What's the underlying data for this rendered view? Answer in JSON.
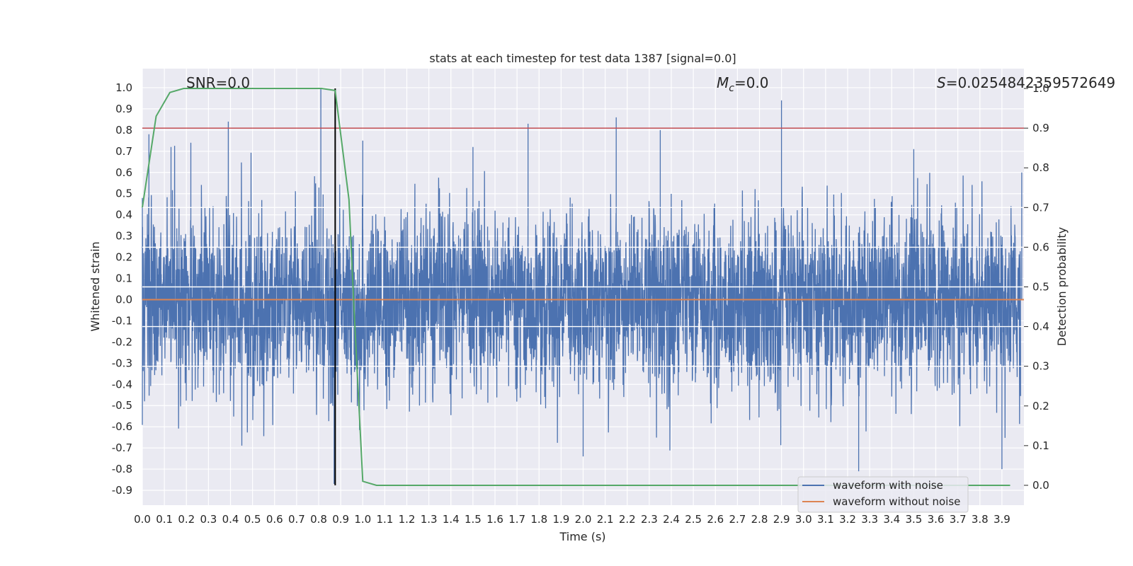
{
  "chart_data": {
    "type": "line",
    "title": "stats at each timestep for test data 1387 [signal=0.0]",
    "xlabel": "Time (s)",
    "ylabel": "Whitened strain",
    "y2label": "Detection probability",
    "xlim": [
      0.0,
      4.0
    ],
    "ylim": [
      -0.97,
      1.09
    ],
    "y2lim": [
      -0.05,
      1.05
    ],
    "x_ticks": [
      "0.0",
      "0.1",
      "0.2",
      "0.3",
      "0.4",
      "0.5",
      "0.6",
      "0.7",
      "0.8",
      "0.9",
      "1.0",
      "1.1",
      "1.2",
      "1.3",
      "1.4",
      "1.5",
      "1.6",
      "1.7",
      "1.8",
      "1.9",
      "2.0",
      "2.1",
      "2.2",
      "2.3",
      "2.4",
      "2.5",
      "2.6",
      "2.7",
      "2.8",
      "2.9",
      "3.0",
      "3.1",
      "3.2",
      "3.3",
      "3.4",
      "3.5",
      "3.6",
      "3.7",
      "3.8",
      "3.9"
    ],
    "y_ticks": [
      "1.0",
      "0.9",
      "0.8",
      "0.7",
      "0.6",
      "0.5",
      "0.4",
      "0.3",
      "0.2",
      "0.1",
      "0.0",
      "-0.1",
      "-0.2",
      "-0.3",
      "-0.4",
      "-0.5",
      "-0.6",
      "-0.7",
      "-0.8",
      "-0.9"
    ],
    "y2_ticks": [
      "1.0",
      "0.9",
      "0.8",
      "0.7",
      "0.6",
      "0.5",
      "0.4",
      "0.3",
      "0.2",
      "0.1",
      "0.0"
    ],
    "grid": true,
    "legend_position": "lower-right",
    "series": [
      {
        "name": "waveform with noise",
        "axis": "left",
        "color": "#4c72b0",
        "description_points": {
          "x": [
            0.0,
            0.03,
            0.13,
            0.22,
            0.39,
            0.81,
            0.87,
            1.0,
            1.5,
            1.75,
            2.0,
            2.15,
            2.35,
            2.9,
            3.25,
            3.5,
            3.9,
            3.99
          ],
          "y": [
            0.48,
            0.78,
            0.72,
            0.74,
            0.84,
            1.0,
            -0.87,
            0.75,
            0.72,
            0.83,
            -0.74,
            0.86,
            0.8,
            0.94,
            -0.81,
            0.71,
            -0.8,
            0.6
          ]
        }
      },
      {
        "name": "waveform without noise",
        "axis": "left",
        "color": "#dd8452",
        "x": [
          0.0,
          4.0
        ],
        "y": [
          0.0,
          0.0
        ]
      },
      {
        "axis": "right",
        "color": "#55a868",
        "x": [
          0.0,
          0.0625,
          0.125,
          0.1875,
          0.25,
          0.3125,
          0.375,
          0.4375,
          0.5,
          0.5625,
          0.625,
          0.6875,
          0.75,
          0.8125,
          0.875,
          0.9375,
          0.96,
          1.0,
          1.0625,
          1.125,
          1.25,
          1.5,
          2.0,
          2.5,
          3.0,
          3.5,
          3.9375
        ],
        "y": [
          0.7,
          0.93,
          0.99,
          1.0,
          1.0,
          1.0,
          1.0,
          1.0,
          1.0,
          1.0,
          1.0,
          1.0,
          1.0,
          1.0,
          0.995,
          0.72,
          0.45,
          0.01,
          0.0,
          0.0,
          0.0,
          0.0,
          0.0,
          0.0,
          0.0,
          0.0,
          0.0
        ]
      }
    ],
    "hlines": [
      {
        "axis": "right",
        "y": 0.9,
        "color": "#c44e52"
      },
      {
        "axis": "right",
        "y": 0.6,
        "color": "#ffffff"
      },
      {
        "axis": "right",
        "y": 0.5,
        "color": "#ffffff"
      },
      {
        "axis": "right",
        "y": 0.4,
        "color": "#ffffff"
      },
      {
        "axis": "right",
        "y": 0.3,
        "color": "#ffffff"
      },
      {
        "axis": "right",
        "y": 0.7,
        "color": "#ffffff"
      }
    ],
    "vline": {
      "x": 0.875,
      "color": "#000000"
    },
    "annotations": {
      "snr": "SNR=0.0",
      "mc_symbol": "M",
      "mc_subscript": "c",
      "mc_value": "=0.0",
      "s_symbol": "S",
      "s_value": "=0.0254842359572649"
    },
    "colors": {
      "plot_bg": "#eaeaf2",
      "grid": "#ffffff",
      "noise": "#4c72b0",
      "clean": "#dd8452",
      "prob": "#55a868",
      "threshold": "#c44e52"
    }
  }
}
